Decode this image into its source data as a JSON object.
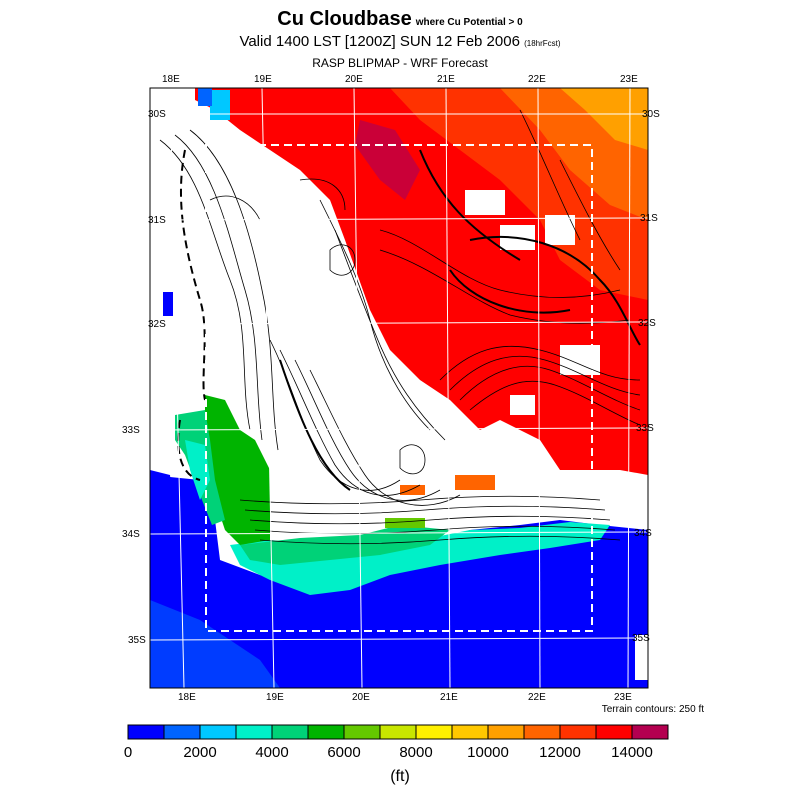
{
  "title": {
    "main": "Cu Cloudbase",
    "qualifier": "where Cu Potential > 0",
    "valid_line": "Valid 1400 LST [1200Z] SUN 12 Feb 2006",
    "forecast_hours": "(18hrFcst)",
    "source": "RASP BLIPMAP - WRF Forecast"
  },
  "map": {
    "top_lon_labels": [
      "18E",
      "19E",
      "20E",
      "21E",
      "22E",
      "23E"
    ],
    "bottom_lon_labels": [
      "18E",
      "19E",
      "20E",
      "21E",
      "22E",
      "23E"
    ],
    "left_lat_labels": [
      "30S",
      "31S",
      "32S",
      "33S",
      "34S",
      "35S"
    ],
    "right_lat_labels": [
      "30S",
      "31S",
      "32S",
      "33S",
      "34S",
      "35S"
    ],
    "terrain_note": "Terrain contours: 250 ft",
    "colors": {
      "ocean": "#0000ff",
      "land_nodata": "#ffffff",
      "grid": "#ffffff"
    }
  },
  "colorbar": {
    "colors": [
      "#0000ff",
      "#0064ff",
      "#00c8ff",
      "#00f0c8",
      "#00d278",
      "#00b400",
      "#64c800",
      "#c8e600",
      "#fff000",
      "#ffc800",
      "#ffa000",
      "#ff6400",
      "#ff3200",
      "#ff0000",
      "#b40050"
    ],
    "tick_labels": [
      "0",
      "2000",
      "4000",
      "6000",
      "8000",
      "10000",
      "12000",
      "14000"
    ],
    "units": "(ft)"
  }
}
